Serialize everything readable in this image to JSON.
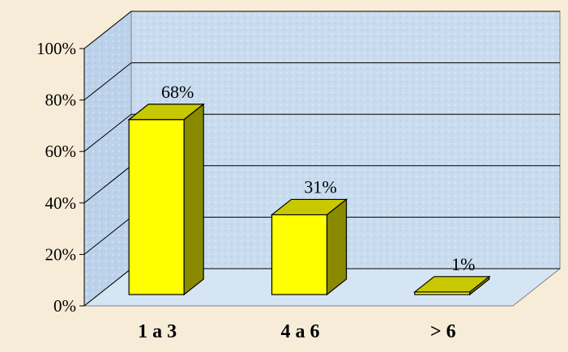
{
  "chart_data": {
    "type": "bar",
    "categories": [
      "1 a 3",
      "4 a 6",
      "> 6"
    ],
    "values": [
      68,
      31,
      1
    ],
    "data_labels": [
      "68%",
      "31%",
      "1%"
    ],
    "y_tick_labels": [
      "0%",
      "20%",
      "40%",
      "60%",
      "80%",
      "100%"
    ],
    "ylim": [
      0,
      100
    ],
    "grid": true,
    "three_d": true,
    "title": "",
    "xlabel": "",
    "ylabel": ""
  },
  "colors": {
    "page_background": "#f6ecd8",
    "plot_back_wall": "#c9dcef",
    "plot_side_wall": "#bcd2ea",
    "plot_floor": "#d6e5f3",
    "bar_front": "#ffff00",
    "bar_top": "#c8c800",
    "bar_side": "#8a8a00",
    "outline": "#000000",
    "text": "#000000"
  }
}
